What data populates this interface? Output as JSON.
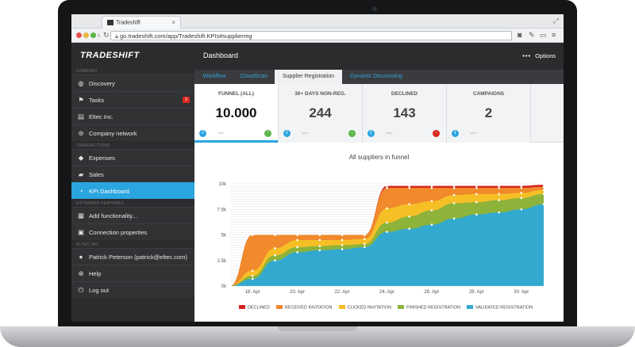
{
  "browser": {
    "tab_title": "Tradeshift",
    "url": "go.tradeshift.com/app/Tradeshift.KPIs#supplierreg"
  },
  "sidebar": {
    "logo": "TRADESHIFT",
    "sections": {
      "company": "COMPANY",
      "transactions": "TRANSACTIONS",
      "extended": "EXTENDED FEATURES",
      "eltec": "ELTEC INC."
    },
    "items": [
      {
        "label": "Discovery",
        "icon": "globe-icon"
      },
      {
        "label": "Tasks",
        "icon": "flag-icon",
        "badge": "3"
      },
      {
        "label": "Eltec Inc.",
        "icon": "document-icon"
      },
      {
        "label": "Company network",
        "icon": "network-icon"
      },
      {
        "label": "Expenses",
        "icon": "tag-icon"
      },
      {
        "label": "Sales",
        "icon": "truck-icon"
      },
      {
        "label": "KPI Dashboard",
        "icon": "pie-chart-icon"
      },
      {
        "label": "Add functionality...",
        "icon": "grid-icon"
      },
      {
        "label": "Connection properties",
        "icon": "plug-icon"
      },
      {
        "label": "Patrick Peterson (patrick@eltec.com)",
        "icon": "user-icon"
      },
      {
        "label": "Help",
        "icon": "lifebuoy-icon"
      },
      {
        "label": "Log out",
        "icon": "power-icon"
      }
    ]
  },
  "header": {
    "title": "Dashboard",
    "options_label": "Options"
  },
  "tabs": [
    "Workflow",
    "CloudScan",
    "Supplier Registration",
    "Dynamic Discounting"
  ],
  "kpis": [
    {
      "label": "FUNNEL (ALL)",
      "value": "10.000",
      "trend": "up"
    },
    {
      "label": "30+ DAYS NON-REG.",
      "value": "244",
      "trend": "down"
    },
    {
      "label": "DECLINED",
      "value": "143",
      "trend": "up"
    },
    {
      "label": "CAMPAIGNS",
      "value": "2",
      "trend": "none"
    }
  ],
  "colors": {
    "accent": "#2aa5e0",
    "declined": "#d7261e",
    "received": "#f08a2c",
    "clicked": "#f6bf26",
    "finished": "#8db33a",
    "validated": "#34a9d0"
  },
  "chart_data": {
    "type": "area",
    "title": "All suppliers in funnel",
    "x": [
      "17. Apr",
      "18. Apr",
      "19. Apr",
      "20. Apr",
      "21. Apr",
      "22. Apr",
      "23. Apr",
      "24. Apr",
      "25. Apr",
      "26. Apr",
      "27. Apr",
      "28. Apr",
      "29. Apr",
      "30. Apr",
      "1. May"
    ],
    "x_tick_labels": [
      "18. Apr",
      "20. Apr",
      "22. Apr",
      "24. Apr",
      "26. Apr",
      "28. Apr",
      "30. Apr"
    ],
    "y_ticks": [
      "0k",
      "2.5k",
      "5k",
      "7.5k",
      "10k"
    ],
    "ylim": [
      0,
      10000
    ],
    "stacking": "cumulative",
    "series": [
      {
        "name": "VALIDATED REGISTRATION",
        "values": [
          0,
          700,
          2500,
          3300,
          3500,
          3600,
          3800,
          5300,
          5600,
          6000,
          6600,
          7000,
          7200,
          7500,
          8000
        ]
      },
      {
        "name": "FINISHED REGISTRATION",
        "values": [
          0,
          300,
          500,
          500,
          400,
          400,
          300,
          900,
          1200,
          1400,
          1500,
          1200,
          1200,
          1100,
          1000
        ]
      },
      {
        "name": "CLICKED INVITATION",
        "values": [
          0,
          500,
          700,
          700,
          600,
          500,
          500,
          1400,
          1200,
          900,
          800,
          800,
          600,
          500,
          400
        ]
      },
      {
        "name": "RECEIVED INVITATION",
        "values": [
          0,
          3500,
          1300,
          500,
          500,
          500,
          400,
          2000,
          1600,
          1300,
          700,
          600,
          600,
          500,
          300
        ]
      },
      {
        "name": "DECLINED",
        "values": [
          0,
          0,
          0,
          0,
          0,
          0,
          0,
          200,
          200,
          200,
          200,
          200,
          200,
          200,
          200
        ]
      }
    ],
    "legend_position": "bottom",
    "grid": true
  }
}
